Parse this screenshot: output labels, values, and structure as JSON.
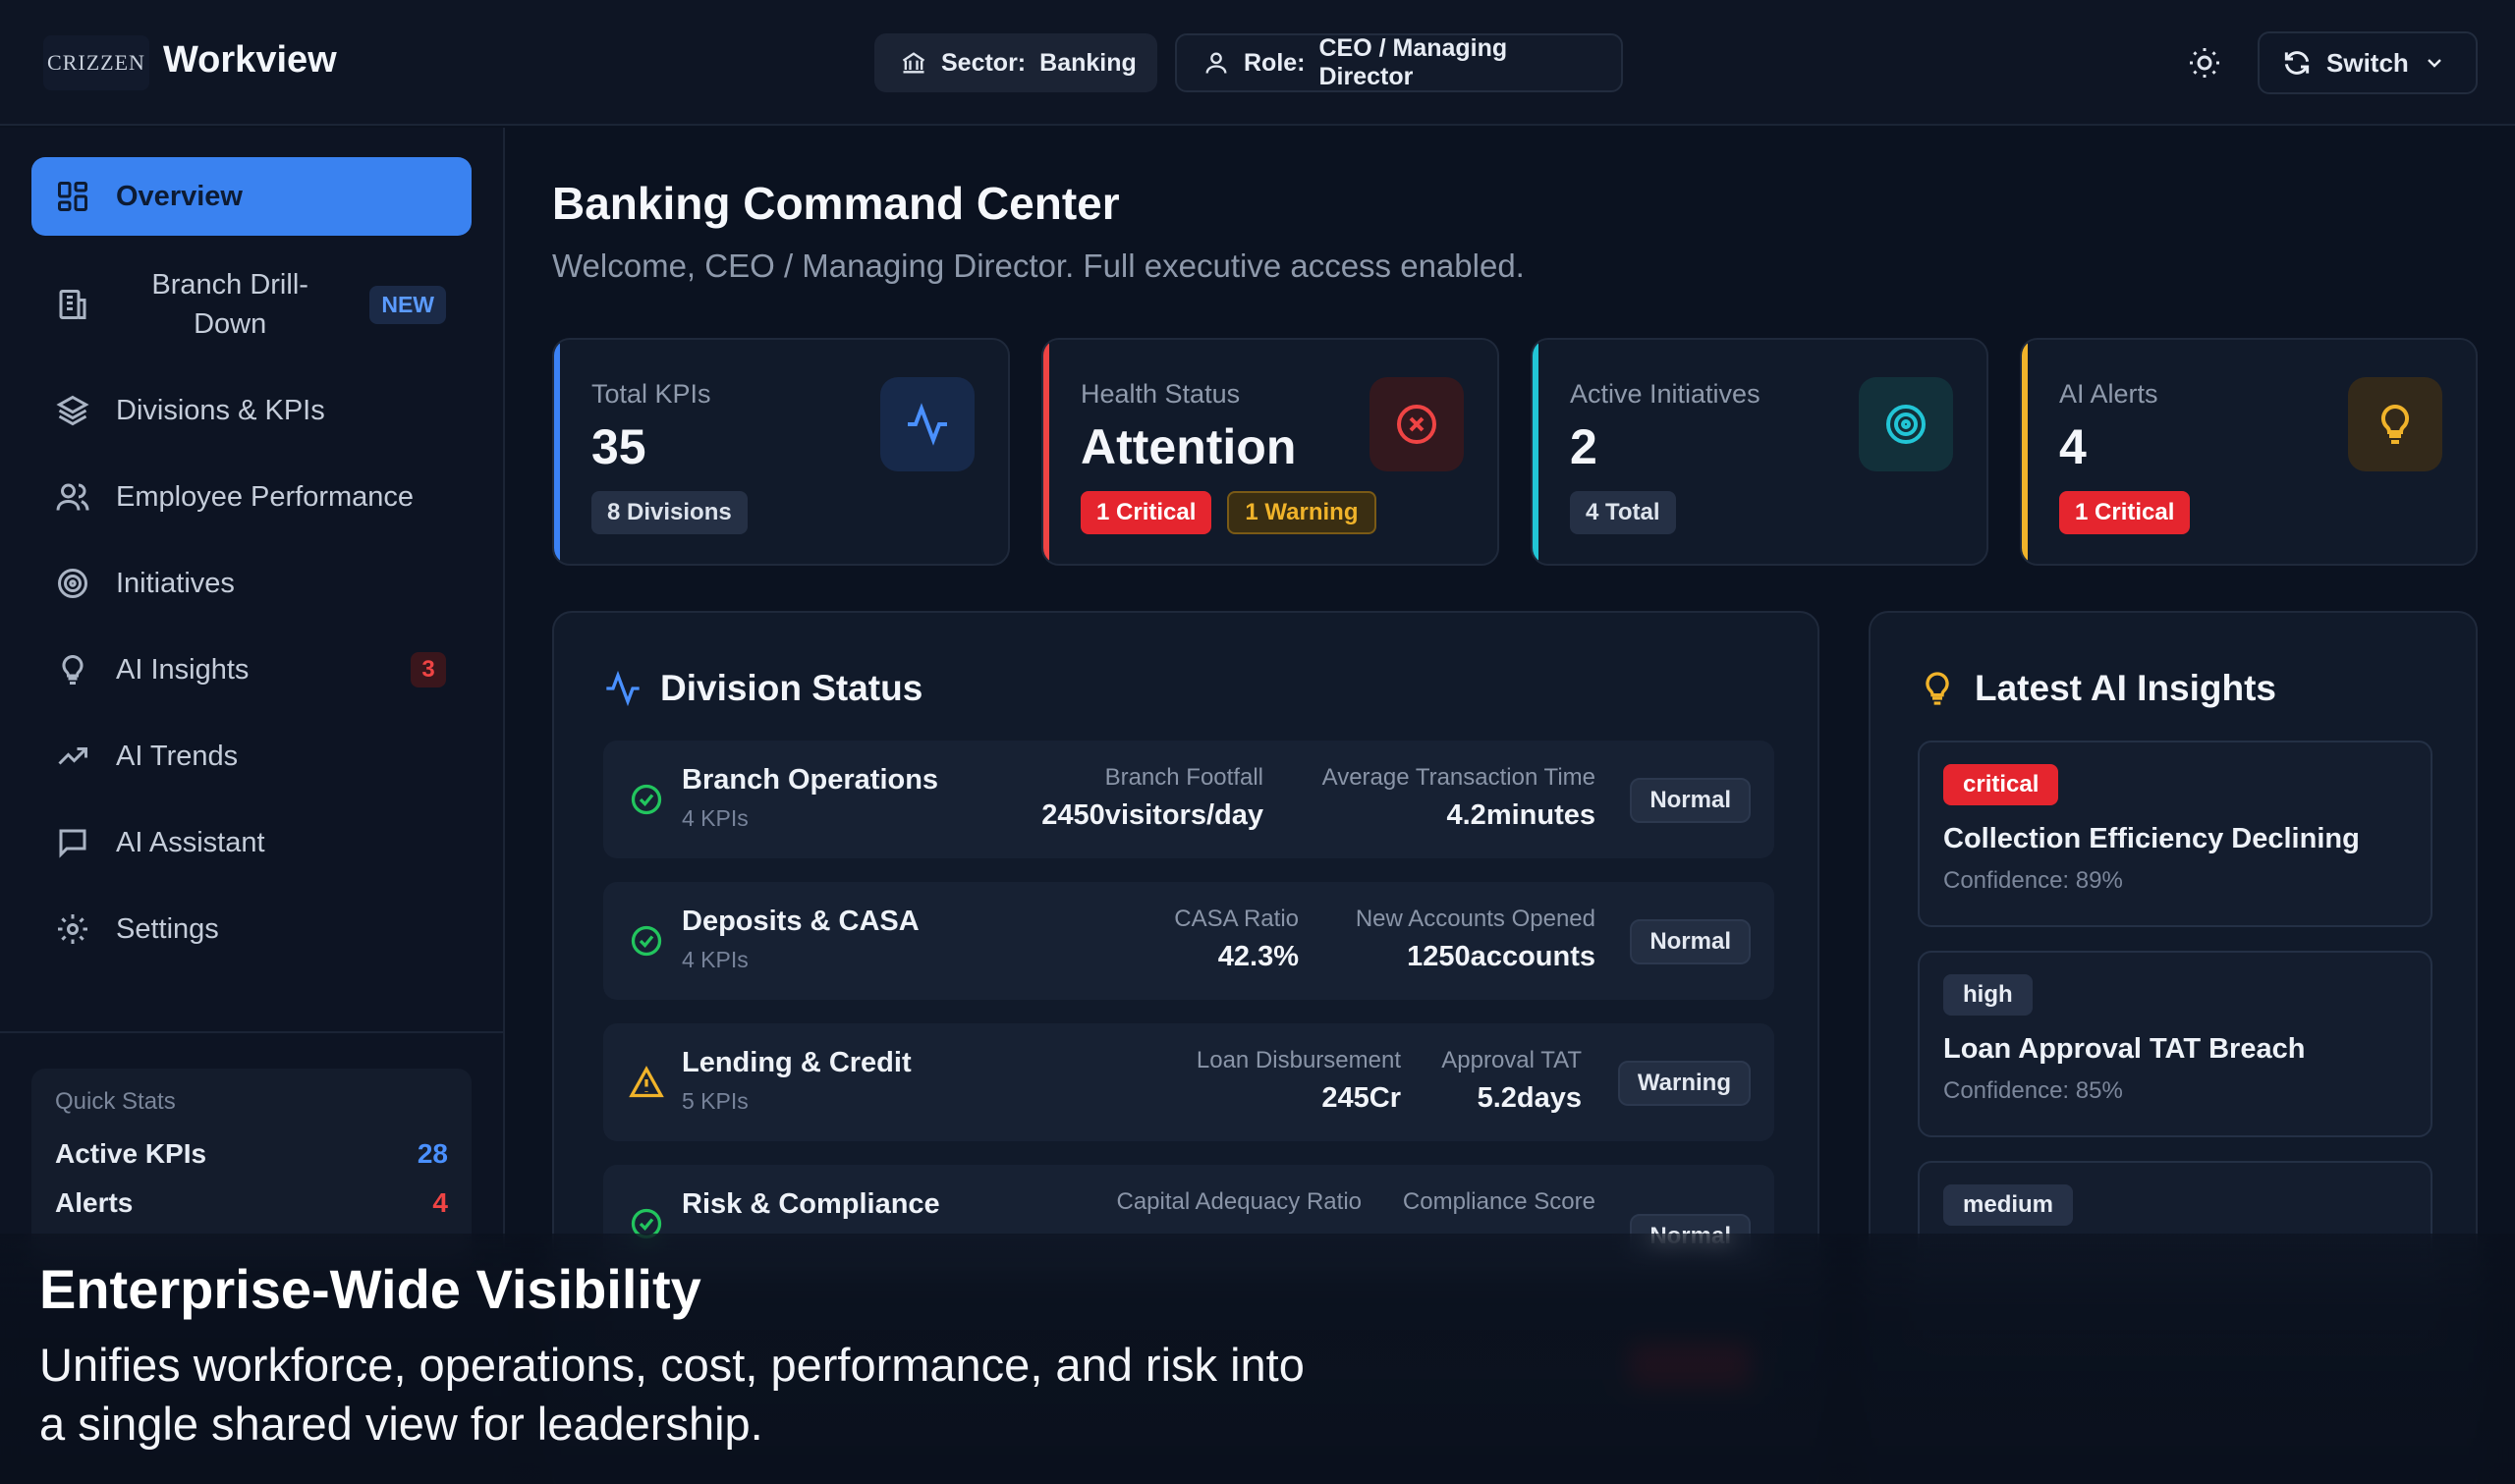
{
  "header": {
    "logo_text": "CRIZZEN",
    "app_name": "Workview",
    "sector_label": "Sector:",
    "sector_value": "Banking",
    "role_label": "Role:",
    "role_value": "CEO / Managing Director",
    "switch_label": "Switch"
  },
  "sidebar": {
    "items": [
      {
        "label": "Overview",
        "icon": "grid-icon"
      },
      {
        "label": "Branch Drill-\nDown",
        "icon": "building-icon",
        "badge": "NEW"
      },
      {
        "label": "Divisions & KPIs",
        "icon": "layers-icon"
      },
      {
        "label": "Employee Performance",
        "icon": "users-icon"
      },
      {
        "label": "Initiatives",
        "icon": "target-icon"
      },
      {
        "label": "AI Insights",
        "icon": "lightbulb-icon",
        "badge": "3"
      },
      {
        "label": "AI Trends",
        "icon": "trend-icon"
      },
      {
        "label": "AI Assistant",
        "icon": "chat-icon"
      },
      {
        "label": "Settings",
        "icon": "gear-icon"
      }
    ],
    "quick_stats": {
      "title": "Quick Stats",
      "active_kpis_label": "Active KPIs",
      "active_kpis_value": "28",
      "alerts_label": "Alerts",
      "alerts_value": "4"
    }
  },
  "main": {
    "title": "Banking Command Center",
    "subtitle": "Welcome, CEO / Managing Director. Full executive access enabled.",
    "stats": [
      {
        "label": "Total KPIs",
        "value": "35",
        "chips": [
          "8 Divisions"
        ],
        "accent": "#3b82f6",
        "icon": "activity-icon"
      },
      {
        "label": "Health Status",
        "value": "Attention",
        "chips": [
          "1 Critical",
          "1 Warning"
        ],
        "accent": "#ef4444",
        "icon": "x-circle-icon"
      },
      {
        "label": "Active Initiatives",
        "value": "2",
        "chips": [
          "4 Total"
        ],
        "accent": "#22c5d6",
        "icon": "target-icon"
      },
      {
        "label": "AI Alerts",
        "value": "4",
        "chips": [
          "1 Critical"
        ],
        "accent": "#f0b32a",
        "icon": "lightbulb-icon"
      }
    ],
    "division_status": {
      "title": "Division Status",
      "rows": [
        {
          "name": "Branch Operations",
          "kpis": "4 KPIs",
          "m1_label": "Branch Footfall",
          "m1_value": "2450visitors/day",
          "m2_label": "Average Transaction Time",
          "m2_value": "4.2minutes",
          "status": "Normal"
        },
        {
          "name": "Deposits & CASA",
          "kpis": "4 KPIs",
          "m1_label": "CASA Ratio",
          "m1_value": "42.3%",
          "m2_label": "New Accounts Opened",
          "m2_value": "1250accounts",
          "status": "Normal"
        },
        {
          "name": "Lending & Credit",
          "kpis": "5 KPIs",
          "m1_label": "Loan Disbursement",
          "m1_value": "245Cr",
          "m2_label": "Approval TAT",
          "m2_value": "5.2days",
          "status": "Warning"
        },
        {
          "name": "Risk & Compliance",
          "kpis": "",
          "m1_label": "Capital Adequacy Ratio",
          "m1_value": "",
          "m2_label": "Compliance Score",
          "m2_value": "",
          "status": "Normal"
        }
      ]
    },
    "ai_insights": {
      "title": "Latest AI Insights",
      "cards": [
        {
          "severity": "critical",
          "title": "Collection Efficiency Declining",
          "confidence": "Confidence: 89%"
        },
        {
          "severity": "high",
          "title": "Loan Approval TAT Breach",
          "confidence": "Confidence: 85%"
        },
        {
          "severity": "medium",
          "title": "",
          "confidence": ""
        }
      ]
    }
  },
  "caption": {
    "title": "Enterprise-Wide Visibility",
    "body": "Unifies workforce, operations, cost, performance, and risk into a single shared view for leadership."
  },
  "colors": {
    "primary": "#3a82f0",
    "critical": "#e5252e",
    "warning": "#f0b32a",
    "normal": "#22c55e",
    "teal": "#22c5d6"
  }
}
